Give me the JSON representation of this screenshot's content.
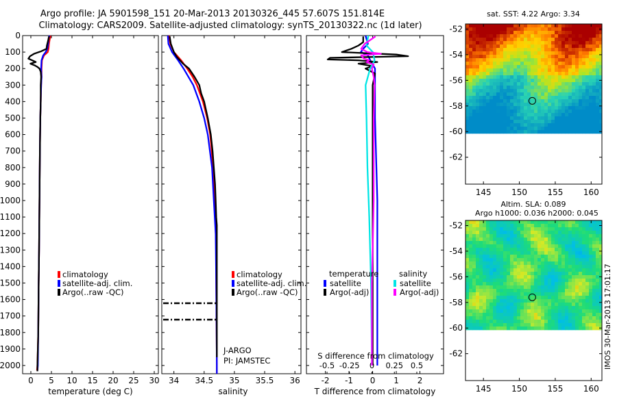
{
  "title_line1": "Argo profile: JA 5901598_151 20-Mar-2013 20130326_445 57.607S 151.814E",
  "title_line2": "Climatology: CARS2009. Satellite-adjusted climatology: synTS_20130322.nc (1d later)",
  "colors": {
    "climatology": "#ff0000",
    "satellite": "#0000ff",
    "argo": "#000000",
    "sat_salinity": "#00e5e5",
    "argo_salinity": "#ff00ff"
  },
  "depth_ticks": [
    "0",
    "100",
    "200",
    "300",
    "400",
    "500",
    "600",
    "700",
    "800",
    "900",
    "1000",
    "1100",
    "1200",
    "1300",
    "1400",
    "1500",
    "1600",
    "1700",
    "1800",
    "1900",
    "2000"
  ],
  "chart_data": [
    {
      "type": "line",
      "name": "temperature",
      "xlabel": "temperature (deg C)",
      "xlim": [
        -2,
        31
      ],
      "ylim": [
        2050,
        0
      ],
      "ylabel": "",
      "x_ticks": [
        "0",
        "5",
        "10",
        "15",
        "20",
        "25",
        "30"
      ],
      "legend": [
        "climatology",
        "satellite-adj. clim.",
        "Argo(..raw -QC)"
      ],
      "series": [
        {
          "name": "climatology",
          "depth": [
            0,
            20,
            50,
            80,
            100,
            120,
            150,
            200,
            250,
            300,
            400,
            500,
            700,
            1000,
            1300,
            1500,
            1800,
            2000,
            2030
          ],
          "values": [
            4.8,
            4.6,
            4.4,
            4.3,
            4.1,
            3.2,
            2.7,
            2.6,
            2.6,
            2.5,
            2.4,
            2.3,
            2.2,
            2.1,
            2.0,
            1.9,
            1.8,
            1.6,
            1.5
          ]
        },
        {
          "name": "satellite-adj. clim.",
          "depth": [
            0,
            20,
            50,
            80,
            100,
            120,
            150,
            200,
            250,
            300,
            400,
            500,
            700,
            1000,
            1300,
            1500,
            1800,
            2000,
            2030
          ],
          "values": [
            4.5,
            4.3,
            4.2,
            4.0,
            3.6,
            3.0,
            2.6,
            2.5,
            2.6,
            2.5,
            2.4,
            2.3,
            2.2,
            2.1,
            2.0,
            1.9,
            1.8,
            1.7,
            1.6
          ]
        },
        {
          "name": "Argo(..raw -QC)",
          "depth": [
            5,
            20,
            40,
            60,
            80,
            95,
            110,
            125,
            140,
            150,
            160,
            170,
            180,
            190,
            200,
            220,
            250,
            300,
            400,
            500,
            700,
            1000,
            1300,
            1500,
            1800,
            2000,
            2035
          ],
          "values": [
            4.4,
            4.3,
            4.1,
            3.9,
            3.8,
            2.5,
            0.8,
            -0.2,
            -0.6,
            0.3,
            1.2,
            -0.1,
            0.9,
            1.6,
            2.1,
            2.4,
            2.5,
            2.4,
            2.4,
            2.3,
            2.2,
            2.1,
            2.0,
            1.9,
            1.8,
            1.6,
            1.6
          ]
        }
      ]
    },
    {
      "type": "line",
      "name": "salinity",
      "xlabel": "salinity",
      "xlim": [
        33.8,
        36.1
      ],
      "ylim": [
        2050,
        0
      ],
      "x_ticks": [
        "34",
        "34.5",
        "35",
        "35.5",
        "36"
      ],
      "legend": [
        "climatology",
        "satellite-adj. clim.",
        "Argo(..raw -QC)"
      ],
      "annotations": [
        "J-ARGO",
        "PI: JAMSTEC"
      ],
      "series": [
        {
          "name": "climatology",
          "depth": [
            0,
            50,
            100,
            150,
            200,
            250,
            300,
            400,
            500,
            600,
            800,
            1000,
            1200,
            1300,
            1500,
            2000,
            2050
          ],
          "values": [
            33.92,
            33.94,
            34.0,
            34.12,
            34.22,
            34.31,
            34.38,
            34.48,
            34.55,
            34.6,
            34.65,
            34.68,
            34.69,
            34.7,
            34.7,
            34.71,
            34.71
          ]
        },
        {
          "name": "satellite-adj. clim.",
          "depth": [
            0,
            50,
            100,
            150,
            200,
            250,
            300,
            400,
            500,
            600,
            800,
            1000,
            1200,
            1500,
            2000,
            2050
          ],
          "values": [
            33.9,
            33.91,
            33.97,
            34.07,
            34.16,
            34.24,
            34.32,
            34.42,
            34.5,
            34.56,
            34.63,
            34.66,
            34.69,
            34.7,
            34.71,
            34.71
          ]
        },
        {
          "name": "Argo(..raw -QC)",
          "depth": [
            5,
            50,
            100,
            130,
            150,
            170,
            200,
            250,
            300,
            350,
            400,
            500,
            600,
            700,
            800,
            900,
            1000,
            1100,
            1150,
            1200,
            1300,
            1500,
            1700,
            1900,
            1950
          ],
          "values": [
            33.93,
            33.95,
            34.0,
            34.05,
            34.1,
            34.15,
            34.25,
            34.34,
            34.42,
            34.45,
            34.5,
            34.56,
            34.61,
            34.64,
            34.66,
            34.68,
            34.69,
            34.7,
            34.71,
            34.71,
            34.71,
            34.71,
            34.71,
            34.71,
            34.71
          ]
        }
      ]
    },
    {
      "type": "line",
      "name": "difference from climatology",
      "xlabel": "T difference from climatology",
      "xlabel_top": "S difference from climatology",
      "xlim": [
        -2.8,
        3.0
      ],
      "ylim": [
        2050,
        0
      ],
      "x_ticks": [
        "-2",
        "-1",
        "0",
        "1",
        "2"
      ],
      "x_ticks_top": [
        "-0.5",
        "-0.25",
        "0",
        "0.25",
        "0.5"
      ],
      "legend_headers": [
        "temperature",
        "salinity"
      ],
      "legend": [
        "satellite",
        "Argo(-adj)",
        "satellite",
        "Argo(-adj)"
      ],
      "series": [
        {
          "name": "temperature satellite",
          "depth": [
            0,
            50,
            80,
            100,
            120,
            150,
            200,
            300,
            500,
            1000,
            1500,
            2000
          ],
          "values": [
            -0.3,
            -0.2,
            -0.4,
            -0.5,
            -0.2,
            -0.1,
            0.1,
            0.1,
            0.1,
            0.2,
            0.2,
            0.2
          ]
        },
        {
          "name": "temperature Argo(-adj)",
          "depth": [
            5,
            40,
            60,
            80,
            100,
            115,
            125,
            135,
            145,
            150,
            160,
            170,
            185,
            200,
            230,
            300,
            500,
            1000,
            1500,
            2000
          ],
          "values": [
            -0.4,
            -0.4,
            -0.6,
            -0.9,
            -1.3,
            1.0,
            1.5,
            -1.8,
            -1.9,
            -0.6,
            0.2,
            -0.6,
            0.0,
            -0.3,
            0.1,
            0.0,
            0.0,
            0.0,
            0.0,
            0.0
          ]
        },
        {
          "name": "salinity satellite",
          "depth": [
            0,
            60,
            100,
            150,
            200,
            300,
            500,
            800,
            1100,
            1500,
            2000
          ],
          "values": [
            -0.04,
            -0.06,
            0.01,
            0.03,
            -0.02,
            -0.07,
            -0.06,
            -0.05,
            -0.03,
            -0.01,
            0.0
          ]
        },
        {
          "name": "salinity Argo(-adj)",
          "depth": [
            5,
            50,
            80,
            100,
            110,
            120,
            140,
            150,
            160,
            175,
            200,
            250,
            300,
            500,
            800,
            1000,
            1500,
            1700,
            2000
          ],
          "values": [
            0.04,
            -0.08,
            -0.12,
            -0.05,
            0.1,
            -0.12,
            -0.09,
            -0.03,
            -0.06,
            0.02,
            0.0,
            0.02,
            0.03,
            0.02,
            0.02,
            0.02,
            0.0,
            0.0,
            0.0
          ]
        }
      ]
    }
  ],
  "maps": [
    {
      "title": "sat. SST: 4.22 Argo: 3.34",
      "subtitle": "",
      "x_ticks": [
        "145",
        "150",
        "155",
        "160"
      ],
      "y_ticks": [
        "-52",
        "-54",
        "-56",
        "-58",
        "-60",
        "-62"
      ],
      "xlim": [
        142.5,
        161.5
      ],
      "ylim": [
        -64.1,
        -51.6
      ],
      "data_bottom": -60,
      "profile": [
        151.8,
        -57.6
      ]
    },
    {
      "title": "Altim. SLA: 0.089",
      "subtitle": "Argo h1000: 0.036 h2000: 0.045",
      "x_ticks": [
        "145",
        "150",
        "155",
        "160"
      ],
      "y_ticks": [
        "-52",
        "-54",
        "-56",
        "-58",
        "-60",
        "-62"
      ],
      "xlim": [
        142.5,
        161.5
      ],
      "ylim": [
        -64.1,
        -51.6
      ],
      "data_bottom": -60,
      "profile": [
        151.8,
        -57.6
      ]
    }
  ],
  "footer": "IMOS 30-Mar-2013 17:01:17"
}
